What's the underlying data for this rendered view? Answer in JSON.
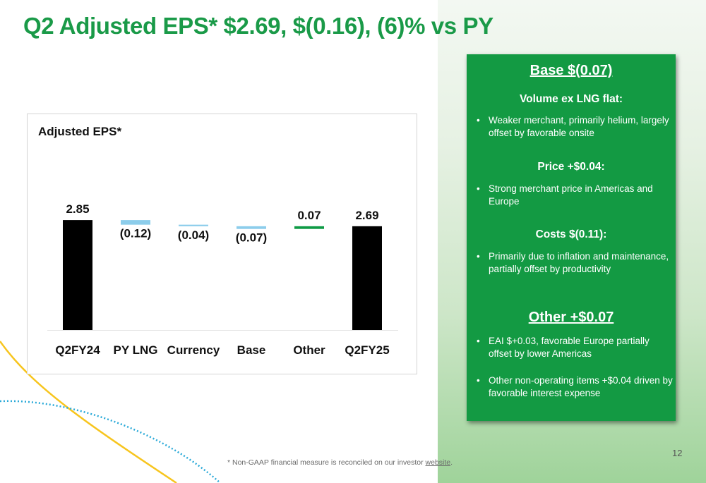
{
  "slide": {
    "title": "Q2 Adjusted EPS* $2.69, $(0.16), (6)% vs PY",
    "page_number": "12"
  },
  "footnote": {
    "text": "* Non-GAAP financial measure is reconciled on our investor ",
    "link_text": "website",
    "suffix": "."
  },
  "chart_data": {
    "type": "bar",
    "subtype": "waterfall",
    "title": "Adjusted EPS*",
    "categories": [
      "Q2FY24",
      "PY LNG",
      "Currency",
      "Base",
      "Other",
      "Q2FY25"
    ],
    "values": [
      2.85,
      -0.12,
      -0.04,
      -0.07,
      0.07,
      2.69
    ],
    "value_labels": [
      "2.85",
      "(0.12)",
      "(0.04)",
      "(0.07)",
      "0.07",
      "2.69"
    ],
    "bar_kinds": [
      "total",
      "delta",
      "delta",
      "delta",
      "delta",
      "total"
    ],
    "colors": {
      "total": "#000000",
      "decrease": "#8ccdeb",
      "increase": "#0e9a45"
    },
    "grid": false,
    "legend": "none"
  },
  "panel": {
    "background": "#139a43",
    "sections": [
      {
        "heading": "Base $(0.07)",
        "subsections": [
          {
            "subheading": "Volume ex LNG flat:",
            "bullets": [
              "Weaker merchant, primarily helium, largely offset by favorable onsite"
            ]
          },
          {
            "subheading": "Price +$0.04:",
            "bullets": [
              "Strong merchant price in Americas and Europe"
            ]
          },
          {
            "subheading": "Costs $(0.11):",
            "bullets": [
              "Primarily due to inflation and maintenance, partially offset by productivity"
            ]
          }
        ]
      },
      {
        "heading": "Other +$0.07",
        "bullets": [
          "EAI $+0.03, favorable Europe partially offset by lower Americas",
          "Other non-operating items +$0.04 driven by favorable interest expense"
        ]
      }
    ]
  },
  "colors": {
    "title_green": "#1a9a48",
    "deco_yellow": "#f7c51e",
    "deco_blue": "#29a9d8"
  }
}
